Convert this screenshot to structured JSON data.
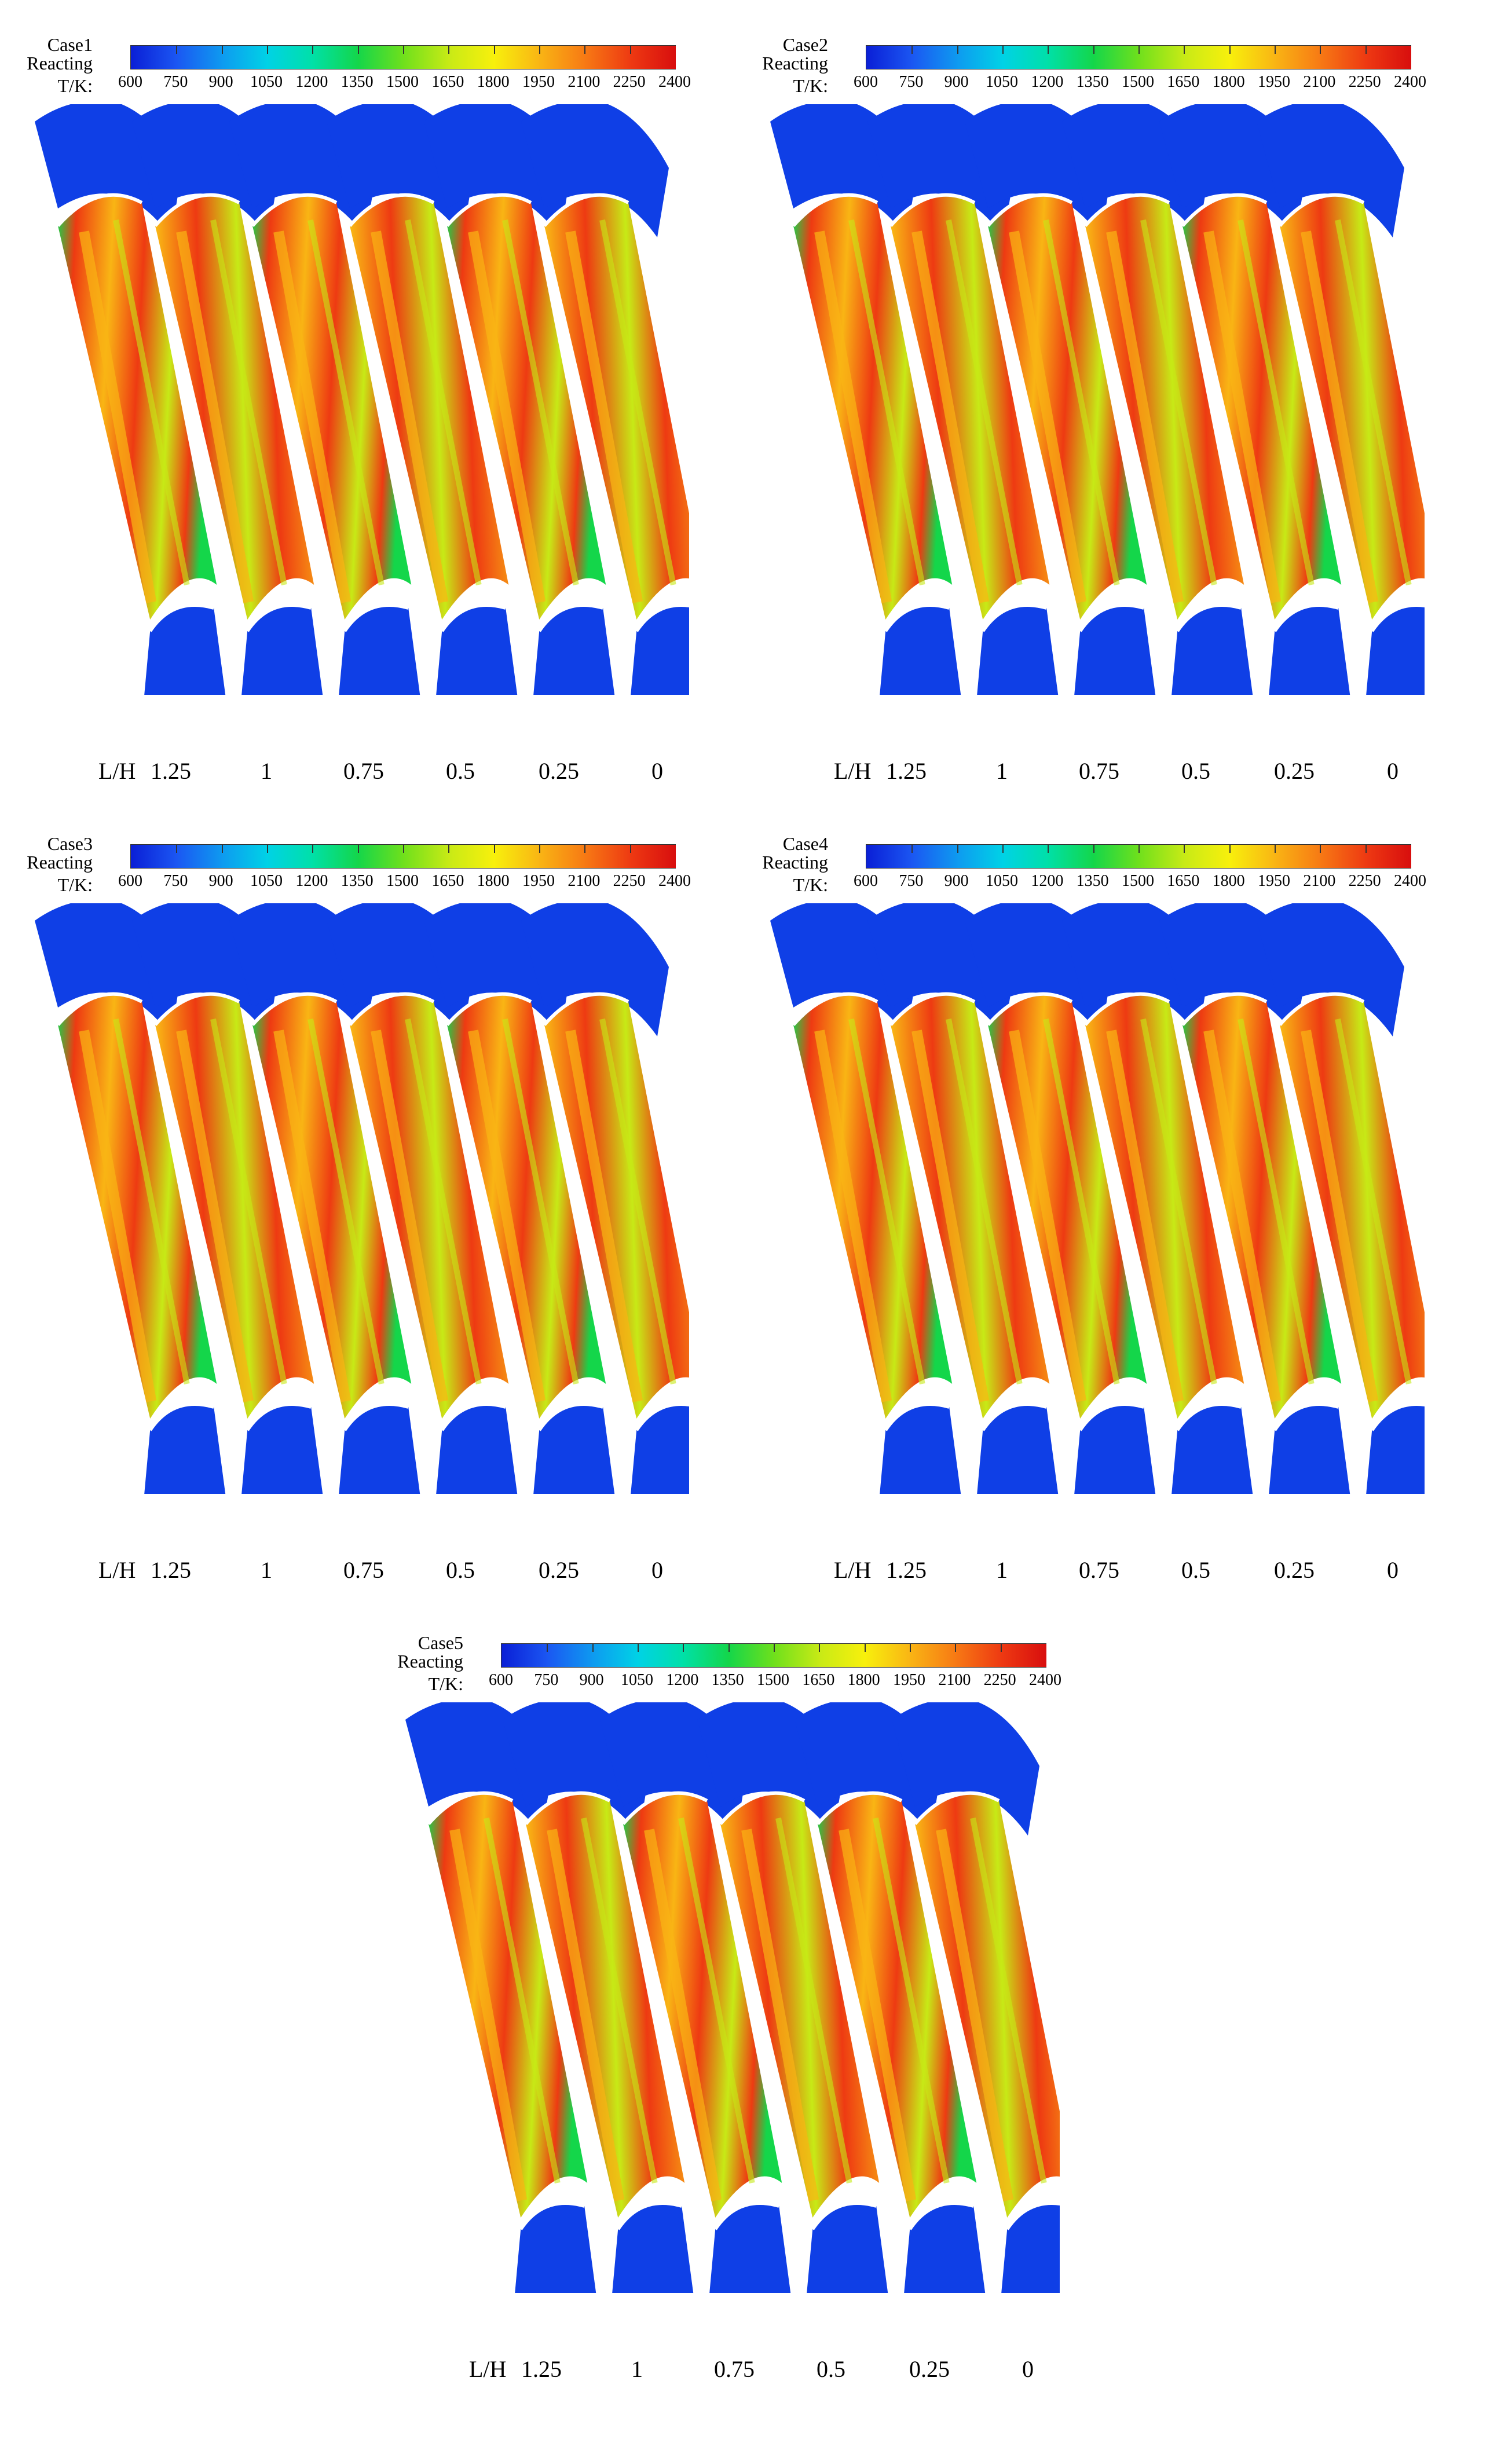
{
  "colorbar": {
    "ticks": [
      "600",
      "750",
      "900",
      "1050",
      "1200",
      "1350",
      "1500",
      "1650",
      "1800",
      "1950",
      "2100",
      "2250",
      "2400"
    ],
    "stops": [
      "#0a1fd6",
      "#1b56f2",
      "#0e9af0",
      "#00d2e6",
      "#00e0a8",
      "#14d64a",
      "#6fe01c",
      "#c7ea16",
      "#f8f00c",
      "#f9b514",
      "#f77a14",
      "#ee3a12",
      "#d80e0e"
    ]
  },
  "units_label": "T/K:",
  "condition_label": "Reacting",
  "axis_label": "L/H",
  "positions": [
    "1.25",
    "1",
    "0.75",
    "0.5",
    "0.25",
    "0"
  ],
  "cases": [
    {
      "name": "Case1"
    },
    {
      "name": "Case2"
    },
    {
      "name": "Case3"
    },
    {
      "name": "Case4"
    },
    {
      "name": "Case5"
    }
  ],
  "colors": {
    "background": "#0f3fe6",
    "hot": "#ee3a12",
    "warm": "#f9b514",
    "mid": "#c7ea16",
    "cool": "#14d64a",
    "wall": "#ffffff"
  }
}
